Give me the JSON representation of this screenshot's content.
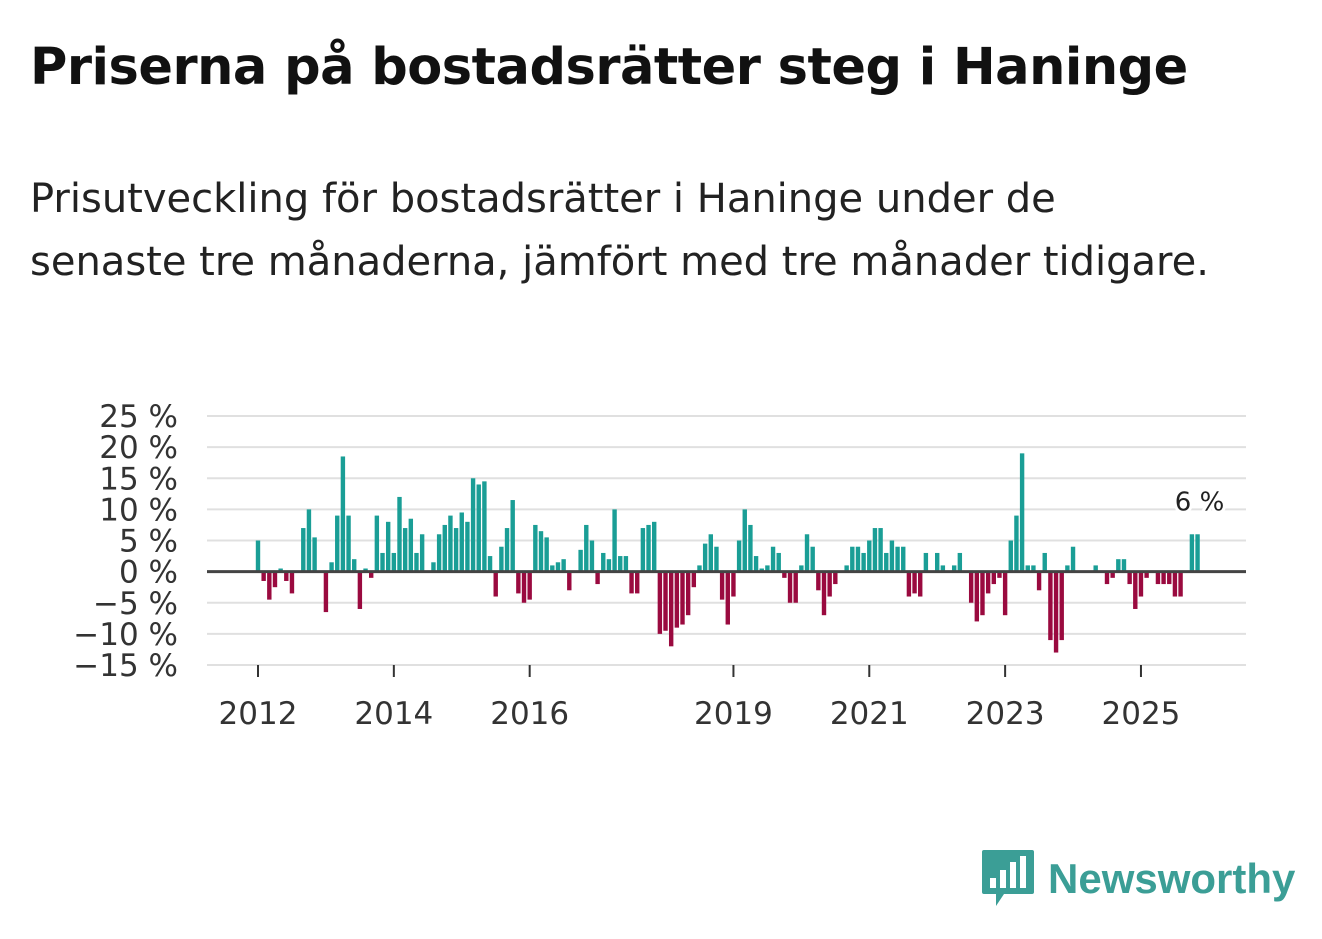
{
  "title": "Priserna på bostadsrätter steg i Haninge",
  "subtitle": "Prisutveckling för bostadsrätter i Haninge under de senaste tre månaderna, jämfört med tre månader tidigare.",
  "logo": {
    "text": "Newsworthy",
    "icon": "newsworthy-bar-chart-icon"
  },
  "colors": {
    "positive": "#1a9e96",
    "negative": "#9a0a3f",
    "grid": "#e0e0e0",
    "zero": "#444444",
    "logo": "#3b9e96"
  },
  "chart_data": {
    "type": "bar",
    "title": "Priserna på bostadsrätter steg i Haninge",
    "xlabel": "",
    "ylabel": "",
    "ylim": [
      -15,
      25
    ],
    "y_ticks": [
      25,
      20,
      15,
      10,
      5,
      0,
      -5,
      -10,
      -15
    ],
    "y_tick_labels": [
      "25 %",
      "20 %",
      "15 %",
      "10 %",
      "5 %",
      "0 %",
      "−5 %",
      "−10 %",
      "−15 %"
    ],
    "x_tick_labels": [
      "2012",
      "2014",
      "2016",
      "2019",
      "2021",
      "2023",
      "2025"
    ],
    "x_tick_months": [
      0,
      24,
      48,
      84,
      108,
      132,
      156
    ],
    "start": "2012-01",
    "annotation": {
      "label": "6 %",
      "month": 166
    },
    "values": [
      5,
      -1.5,
      -4.5,
      -2.5,
      0.5,
      -1.5,
      -3.5,
      0,
      7,
      10,
      5.5,
      0,
      -6.5,
      1.5,
      9,
      18.5,
      9,
      2,
      -6,
      0.5,
      -1,
      9,
      3,
      8,
      3,
      12,
      7,
      8.5,
      3,
      6,
      0,
      1.5,
      6,
      7.5,
      9,
      7,
      9.5,
      8,
      15,
      14,
      14.5,
      2.5,
      -4,
      4,
      7,
      11.5,
      -3.5,
      -5,
      -4.5,
      7.5,
      6.5,
      5.5,
      1,
      1.5,
      2,
      -3,
      0,
      3.5,
      7.5,
      5,
      -2,
      3,
      2,
      10,
      2.5,
      2.5,
      -3.5,
      -3.5,
      7,
      7.5,
      8,
      -10,
      -9.5,
      -12,
      -9,
      -8.5,
      -7,
      -2.5,
      1,
      4.5,
      6,
      4,
      -4.5,
      -8.5,
      -4,
      5,
      10,
      7.5,
      2.5,
      0.5,
      1,
      4,
      3,
      -1,
      -5,
      -5,
      1,
      6,
      4,
      -3,
      -7,
      -4,
      -2,
      0,
      1,
      4,
      4,
      3,
      5,
      7,
      7,
      3,
      5,
      4,
      4,
      -4,
      -3.5,
      -4,
      3,
      0,
      3,
      1,
      0,
      1,
      3,
      0,
      -5,
      -8,
      -7,
      -3.5,
      -2,
      -1,
      -7,
      5,
      9,
      19,
      1,
      1,
      -3,
      3,
      -11,
      -13,
      -11,
      1,
      4,
      0,
      0,
      0,
      1,
      0,
      -2,
      -1,
      2,
      2,
      -2,
      -6,
      -4,
      -1,
      0,
      -2,
      -2,
      -2,
      -4,
      -4,
      0,
      6,
      6
    ]
  }
}
